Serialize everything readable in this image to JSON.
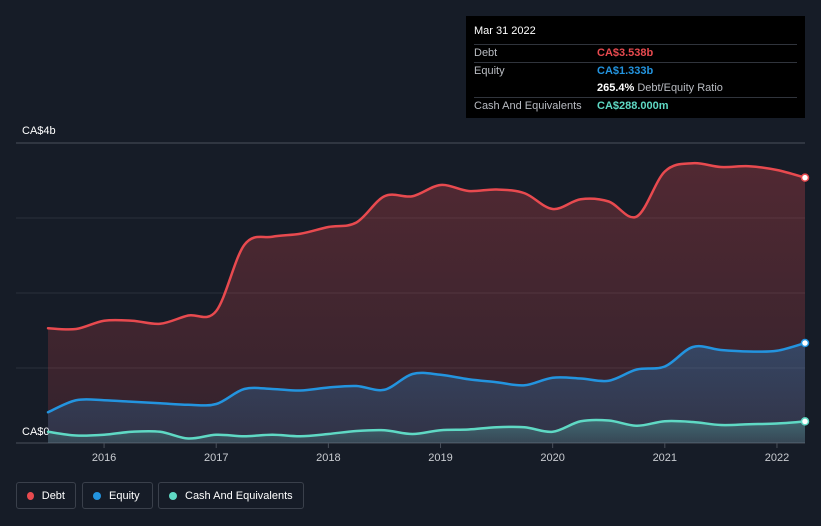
{
  "tooltip": {
    "date": "Mar 31 2022",
    "rows": [
      {
        "label": "Debt",
        "value": "CA$3.538b",
        "color": "#e84a4f"
      },
      {
        "label": "Equity",
        "value": "CA$1.333b",
        "color": "#2394df"
      },
      {
        "label": "",
        "value": "265.4%",
        "extra": "Debt/Equity Ratio",
        "color": "#ffffff"
      },
      {
        "label": "Cash And Equivalents",
        "value": "CA$288.000m",
        "color": "#5fd9c4"
      }
    ]
  },
  "legend": [
    {
      "label": "Debt",
      "color": "#e84a4f"
    },
    {
      "label": "Equity",
      "color": "#2394df"
    },
    {
      "label": "Cash And Equivalents",
      "color": "#5fd9c4"
    }
  ],
  "chart_data": {
    "type": "area",
    "y_unit": "CA$ billions",
    "ylim": [
      0,
      4
    ],
    "y_tick_labels": [
      {
        "value": 4,
        "label": "CA$4b"
      },
      {
        "value": 0,
        "label": "CA$0"
      }
    ],
    "x_ticks": [
      2016,
      2017,
      2018,
      2019,
      2020,
      2021,
      2022
    ],
    "xlim": [
      2015.5,
      2022.25
    ],
    "grid": true,
    "legend_position": "bottom-left",
    "series": [
      {
        "name": "Debt",
        "color": "#e84a4f",
        "x": [
          2015.5,
          2015.75,
          2016.0,
          2016.25,
          2016.5,
          2016.75,
          2017.0,
          2017.25,
          2017.5,
          2017.75,
          2018.0,
          2018.25,
          2018.5,
          2018.75,
          2019.0,
          2019.25,
          2019.5,
          2019.75,
          2020.0,
          2020.25,
          2020.5,
          2020.75,
          2021.0,
          2021.25,
          2021.5,
          2021.75,
          2022.0,
          2022.25
        ],
        "values": [
          1.53,
          1.52,
          1.63,
          1.63,
          1.59,
          1.7,
          1.76,
          2.64,
          2.75,
          2.79,
          2.88,
          2.94,
          3.29,
          3.29,
          3.44,
          3.36,
          3.38,
          3.33,
          3.12,
          3.25,
          3.22,
          3.02,
          3.62,
          3.73,
          3.68,
          3.69,
          3.64,
          3.538
        ]
      },
      {
        "name": "Equity",
        "color": "#2394df",
        "x": [
          2015.5,
          2015.75,
          2016.0,
          2016.25,
          2016.5,
          2016.75,
          2017.0,
          2017.25,
          2017.5,
          2017.75,
          2018.0,
          2018.25,
          2018.5,
          2018.75,
          2019.0,
          2019.25,
          2019.5,
          2019.75,
          2020.0,
          2020.25,
          2020.5,
          2020.75,
          2021.0,
          2021.25,
          2021.5,
          2021.75,
          2022.0,
          2022.25
        ],
        "values": [
          0.41,
          0.57,
          0.57,
          0.55,
          0.53,
          0.51,
          0.52,
          0.72,
          0.72,
          0.7,
          0.74,
          0.76,
          0.71,
          0.92,
          0.91,
          0.85,
          0.81,
          0.77,
          0.87,
          0.86,
          0.83,
          0.98,
          1.02,
          1.28,
          1.24,
          1.22,
          1.23,
          1.333
        ]
      },
      {
        "name": "Cash And Equivalents",
        "color": "#5fd9c4",
        "x": [
          2015.5,
          2015.75,
          2016.0,
          2016.25,
          2016.5,
          2016.75,
          2017.0,
          2017.25,
          2017.5,
          2017.75,
          2018.0,
          2018.25,
          2018.5,
          2018.75,
          2019.0,
          2019.25,
          2019.5,
          2019.75,
          2020.0,
          2020.25,
          2020.5,
          2020.75,
          2021.0,
          2021.25,
          2021.5,
          2021.75,
          2022.0,
          2022.25
        ],
        "values": [
          0.15,
          0.1,
          0.11,
          0.15,
          0.15,
          0.06,
          0.11,
          0.09,
          0.11,
          0.09,
          0.12,
          0.16,
          0.17,
          0.12,
          0.17,
          0.18,
          0.21,
          0.21,
          0.15,
          0.29,
          0.3,
          0.23,
          0.29,
          0.28,
          0.24,
          0.25,
          0.26,
          0.288
        ]
      }
    ]
  }
}
